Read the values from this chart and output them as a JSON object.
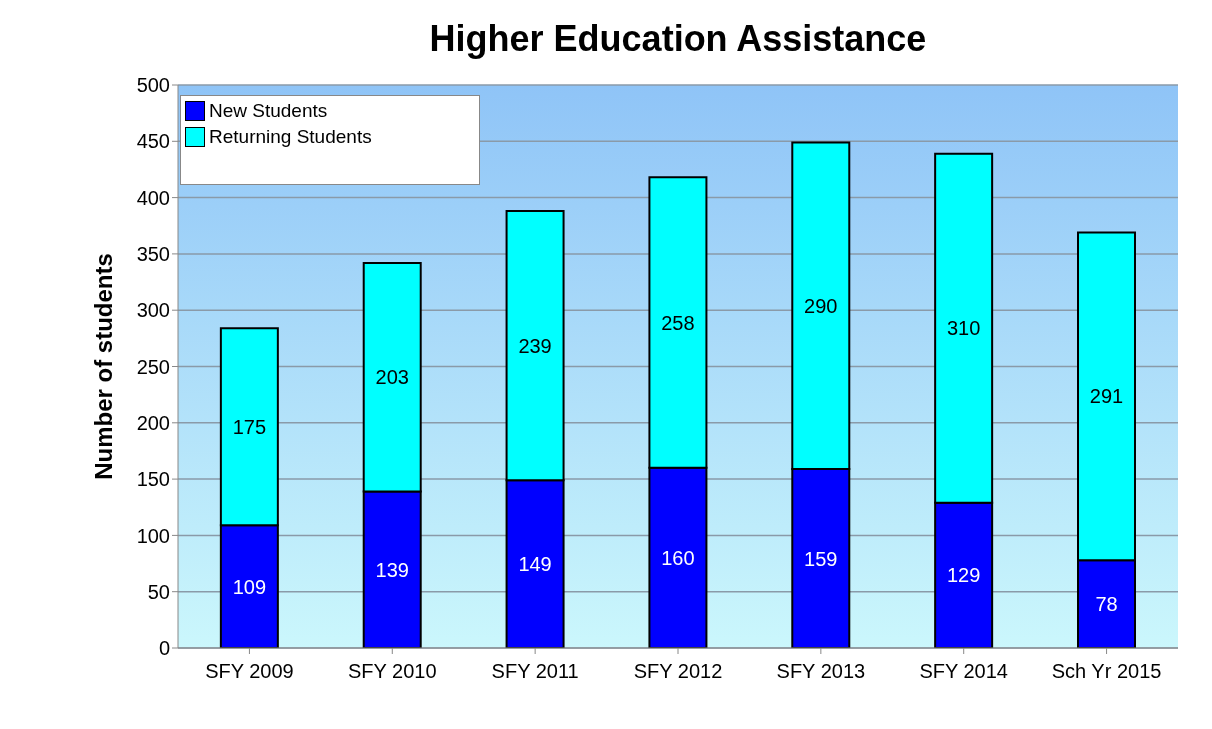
{
  "chart_data": {
    "type": "bar",
    "title": "Higher Education Assistance",
    "ylabel": "Number of students",
    "categories": [
      "SFY 2009",
      "SFY 2010",
      "SFY 2011",
      "SFY 2012",
      "SFY 2013",
      "SFY 2014",
      "Sch Yr 2015"
    ],
    "series": [
      {
        "name": "New Students",
        "color": "#0000ff",
        "values": [
          109,
          139,
          149,
          160,
          159,
          129,
          78
        ]
      },
      {
        "name": "Returning Students",
        "color": "#00ffff",
        "values": [
          175,
          203,
          239,
          258,
          290,
          310,
          291
        ]
      }
    ],
    "stacked": true,
    "ylim": [
      0,
      500
    ],
    "yticks": [
      0,
      50,
      100,
      150,
      200,
      250,
      300,
      350,
      400,
      450,
      500
    ],
    "grid": "y",
    "legend": "top left",
    "data_labels": true
  }
}
